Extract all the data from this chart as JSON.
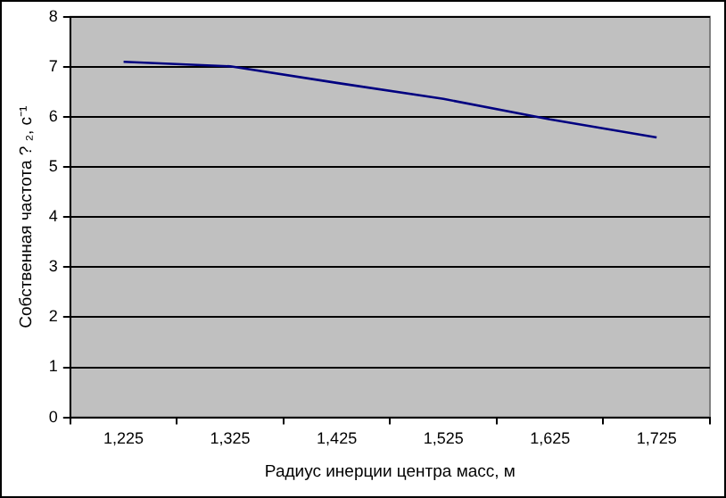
{
  "chart_data": {
    "type": "line",
    "xlabel": "Радиус инерции центра масс, м",
    "ylabel": "Собственная частота ? ₂, с⁻¹",
    "categories": [
      "1,225",
      "1,325",
      "1,425",
      "1,525",
      "1,625",
      "1,725"
    ],
    "series": [
      {
        "color": "#000080",
        "values": [
          7.1,
          7.01,
          6.68,
          6.36,
          5.95,
          5.59
        ]
      }
    ],
    "ylim": [
      0,
      8
    ],
    "yticks": [
      0,
      1,
      2,
      3,
      4,
      5,
      6,
      7,
      8
    ],
    "grid": "y",
    "legend": false,
    "marker": "none",
    "line_style": "solid"
  }
}
